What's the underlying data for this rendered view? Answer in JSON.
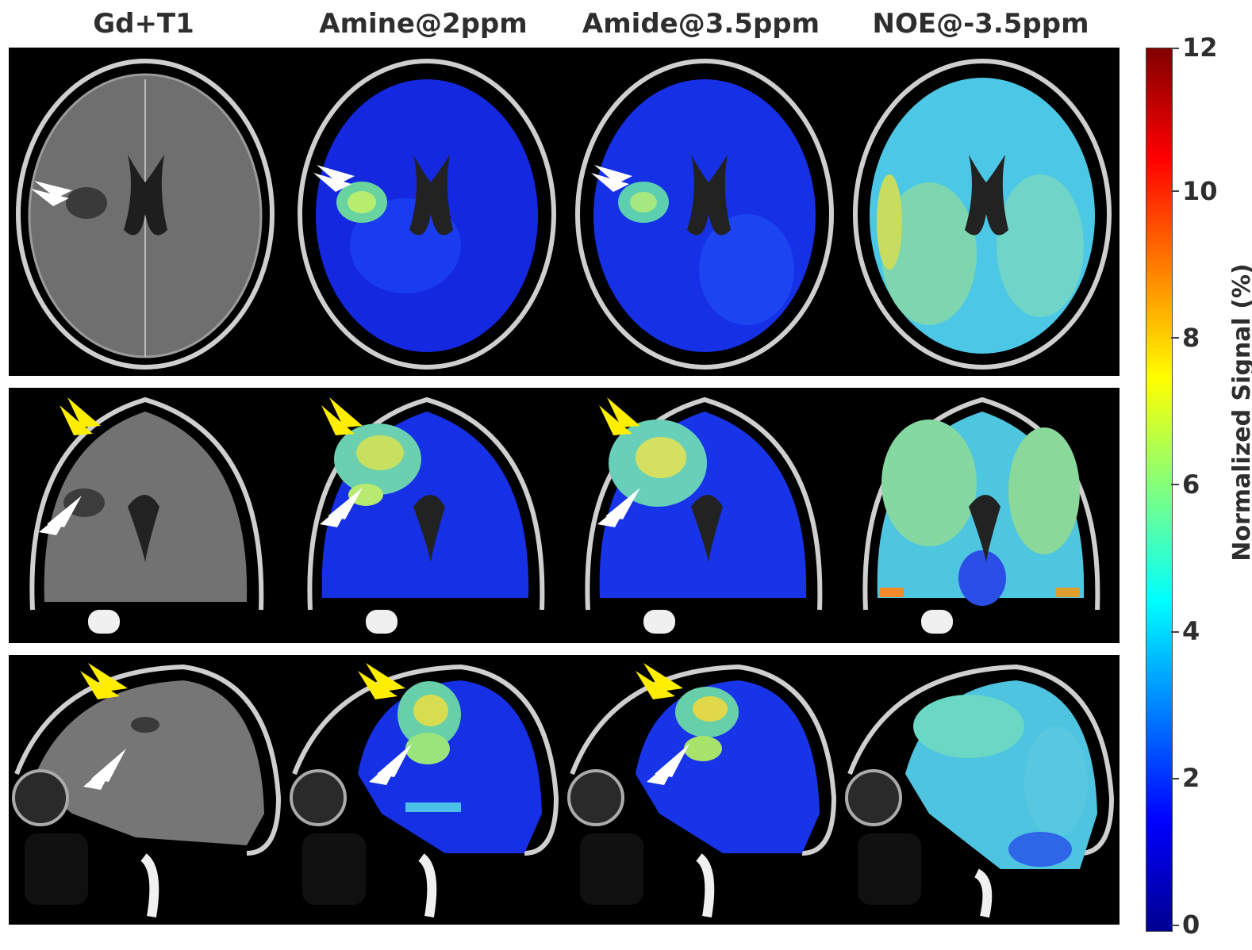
{
  "columns": [
    "Gd+T1",
    "Amine@2ppm",
    "Amide@3.5ppm",
    "NOE@-3.5ppm"
  ],
  "rows": [
    "axial",
    "coronal",
    "sagittal"
  ],
  "colorbar": {
    "label": "Normalized Signal (%)",
    "ticks": [
      "0",
      "2",
      "4",
      "6",
      "8",
      "10",
      "12"
    ],
    "min": 0,
    "max": 12
  },
  "colors": {
    "background": "#000000",
    "arrow_white": "#ffffff",
    "arrow_yellow": "#ffee00"
  }
}
